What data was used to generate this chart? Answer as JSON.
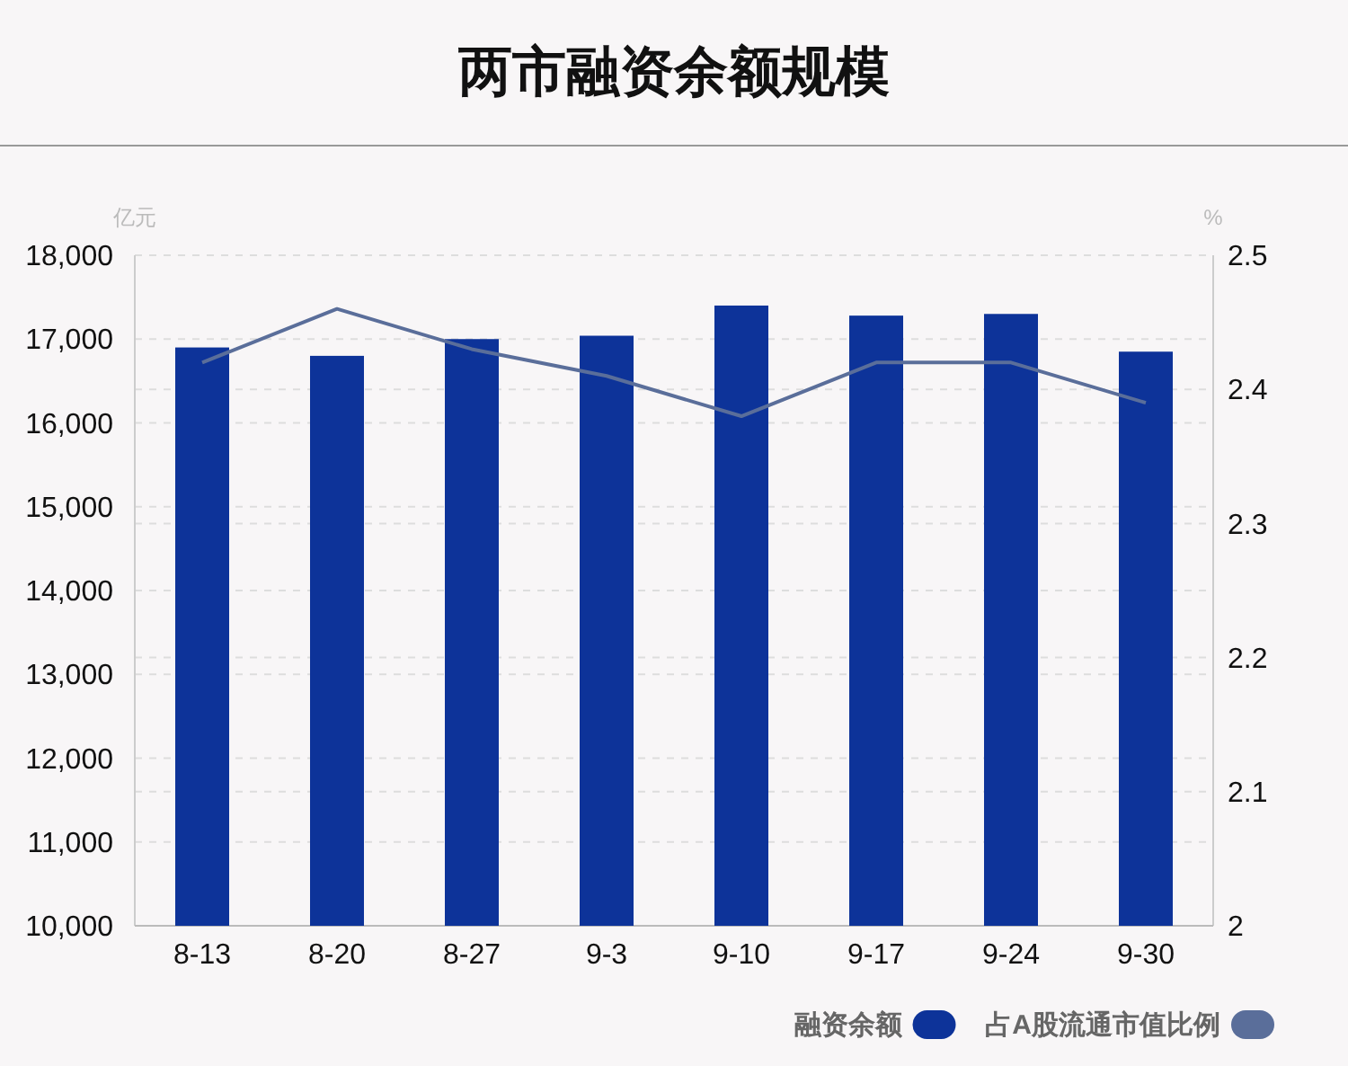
{
  "chart_data": {
    "type": "bar",
    "title": "两市融资余额规模",
    "ylabel": "亿元",
    "y2label": "%",
    "categories": [
      "8-13",
      "8-20",
      "8-27",
      "9-3",
      "9-10",
      "9-17",
      "9-24",
      "9-30"
    ],
    "series": [
      {
        "name": "融资余额",
        "color": "#0d3399",
        "values": [
          16900,
          16800,
          17000,
          17040,
          17400,
          17280,
          17300,
          16850
        ]
      },
      {
        "name": "占A股流通市值比例",
        "type": "line",
        "axis": "y2",
        "color": "#5a6e9a",
        "values": [
          2.42,
          2.46,
          2.43,
          2.41,
          2.38,
          2.42,
          2.42,
          2.39
        ]
      }
    ],
    "ylim": [
      10000,
      18000
    ],
    "yticks": [
      {
        "value": 10000,
        "label": "10,000"
      },
      {
        "value": 11000,
        "label": "11,000"
      },
      {
        "value": 12000,
        "label": "12,000"
      },
      {
        "value": 13000,
        "label": "13,000"
      },
      {
        "value": 14000,
        "label": "14,000"
      },
      {
        "value": 15000,
        "label": "15,000"
      },
      {
        "value": 16000,
        "label": "16,000"
      },
      {
        "value": 17000,
        "label": "17,000"
      },
      {
        "value": 18000,
        "label": "18,000"
      }
    ],
    "y2lim": [
      2,
      2.5
    ],
    "y2ticks": [
      2,
      2.1,
      2.2,
      2.3,
      2.4,
      2.5
    ],
    "grid": true,
    "legend": "bottom right",
    "marker": "none",
    "line_style": "solid"
  }
}
